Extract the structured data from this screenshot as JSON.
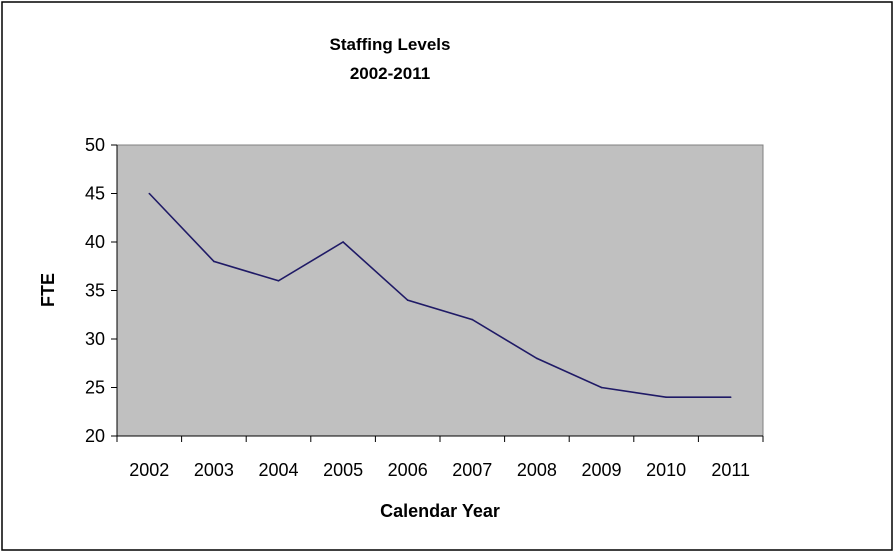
{
  "chart_data": {
    "type": "line",
    "title": "Staffing Levels",
    "subtitle": "2002-2011",
    "xlabel": "Calendar Year",
    "ylabel": "FTE",
    "categories": [
      "2002",
      "2003",
      "2004",
      "2005",
      "2006",
      "2007",
      "2008",
      "2009",
      "2010",
      "2011"
    ],
    "series": [
      {
        "values": [
          45,
          38,
          36,
          40,
          34,
          32,
          28,
          25,
          24,
          24
        ],
        "color": "#1f1a66"
      }
    ],
    "ylim": [
      20,
      50
    ],
    "yticks": [
      "20",
      "25",
      "30",
      "35",
      "40",
      "45",
      "50"
    ],
    "grid": false,
    "legend": "none",
    "plot_background": "#c0c0c0"
  }
}
